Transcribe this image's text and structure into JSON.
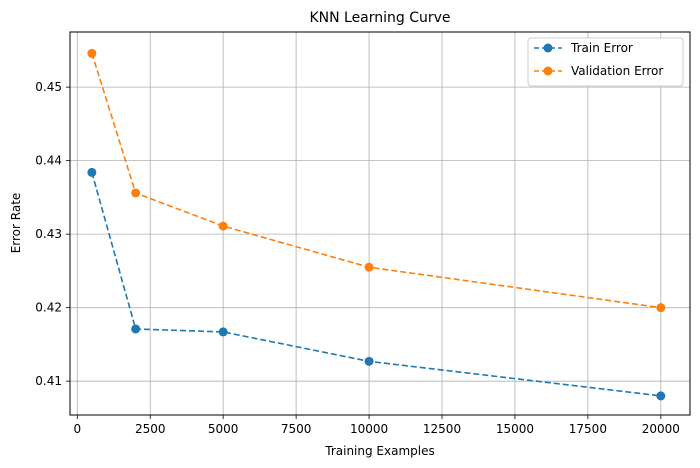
{
  "chart_data": {
    "type": "line",
    "title": "KNN Learning Curve",
    "xlabel": "Training Examples",
    "ylabel": "Error Rate",
    "xlim": [
      -250,
      21000
    ],
    "ylim": [
      0.4054,
      0.4575
    ],
    "xticks": [
      0,
      2500,
      5000,
      7500,
      10000,
      12500,
      15000,
      17500,
      20000
    ],
    "yticks": [
      0.41,
      0.42,
      0.43,
      0.44,
      0.45
    ],
    "grid": true,
    "legend_position": "top-right",
    "x": [
      500,
      2000,
      5000,
      10000,
      20000
    ],
    "series": [
      {
        "name": "Train Error",
        "color": "#1f77b4",
        "line_style": "dashed",
        "marker": "circle",
        "values": [
          0.4384,
          0.4171,
          0.4167,
          0.4127,
          0.408
        ]
      },
      {
        "name": "Validation Error",
        "color": "#ff7f0e",
        "line_style": "dashed",
        "marker": "circle",
        "values": [
          0.4546,
          0.4356,
          0.4311,
          0.4255,
          0.42
        ]
      }
    ]
  }
}
